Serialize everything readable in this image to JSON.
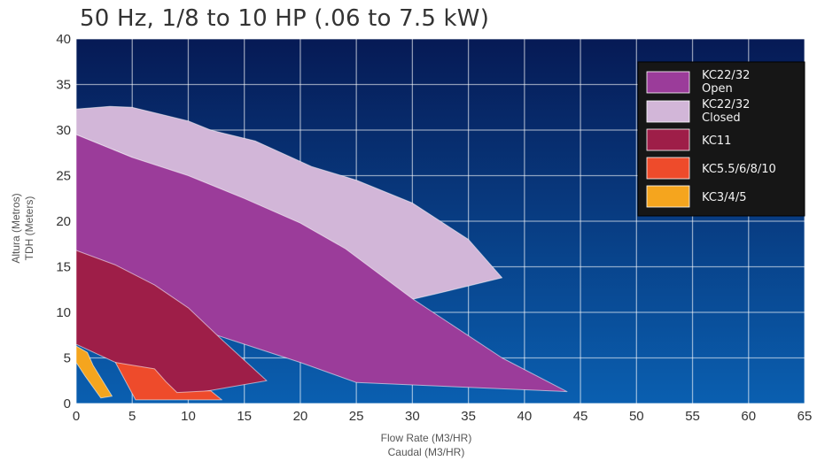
{
  "chart_data": {
    "type": "area",
    "title": "50 Hz, 1/8 to 10 HP (.06 to 7.5 kW)",
    "xlabel": [
      "Flow Rate (M3/HR)",
      "Caudal (M3/HR)"
    ],
    "ylabel": [
      "Altura (Metros)",
      "TDH (Meters)"
    ],
    "xlim": [
      0,
      65
    ],
    "ylim": [
      0,
      40
    ],
    "xticks": [
      0,
      5,
      10,
      15,
      20,
      25,
      30,
      35,
      40,
      45,
      50,
      55,
      60,
      65
    ],
    "yticks": [
      0,
      5,
      10,
      15,
      20,
      25,
      30,
      35,
      40
    ],
    "grid": true,
    "legend_position": "top-right",
    "background_colors": [
      "#061a55",
      "#0a5fb0"
    ],
    "series": [
      {
        "name": [
          "KC22/32",
          "Closed"
        ],
        "color": "#d2b6d8",
        "polygon": [
          [
            0,
            32.3
          ],
          [
            3,
            32.6
          ],
          [
            5,
            32.5
          ],
          [
            10,
            31
          ],
          [
            12,
            30
          ],
          [
            16,
            28.8
          ],
          [
            21,
            26
          ],
          [
            25,
            24.5
          ],
          [
            30,
            22
          ],
          [
            35,
            18
          ],
          [
            38,
            13.8
          ],
          [
            32,
            12
          ],
          [
            25,
            10
          ],
          [
            20,
            12
          ],
          [
            10,
            22
          ],
          [
            5,
            27
          ],
          [
            0,
            29.5
          ]
        ]
      },
      {
        "name": [
          "KC22/32",
          "Open"
        ],
        "color": "#9b3c9a",
        "polygon": [
          [
            0,
            29.5
          ],
          [
            5,
            27
          ],
          [
            10,
            25
          ],
          [
            15,
            22.5
          ],
          [
            20,
            19.8
          ],
          [
            24,
            17
          ],
          [
            30,
            11.5
          ],
          [
            38,
            5
          ],
          [
            43.8,
            1.3
          ],
          [
            25,
            2.3
          ],
          [
            20,
            4.5
          ],
          [
            10,
            8.5
          ],
          [
            5,
            11
          ],
          [
            0,
            16.8
          ]
        ]
      },
      {
        "name": [
          "KC11"
        ],
        "color": "#9e1e48",
        "polygon": [
          [
            0,
            16.8
          ],
          [
            3.5,
            15.2
          ],
          [
            7,
            13
          ],
          [
            10,
            10.5
          ],
          [
            13,
            7
          ],
          [
            17,
            2.5
          ],
          [
            9,
            0.8
          ],
          [
            3.5,
            4.5
          ],
          [
            0,
            6.5
          ]
        ]
      },
      {
        "name": [
          "KC5.5/6/8/10"
        ],
        "color": "#ee4b2b",
        "polygon": [
          [
            3.5,
            4.5
          ],
          [
            7,
            3.8
          ],
          [
            8,
            2.4
          ],
          [
            9,
            1.2
          ],
          [
            12,
            1.4
          ],
          [
            13,
            0.4
          ],
          [
            5.3,
            0.4
          ],
          [
            3.5,
            4.5
          ]
        ]
      },
      {
        "name": [
          "KC3/4/5"
        ],
        "color": "#f5a51e",
        "polygon": [
          [
            0,
            6.3
          ],
          [
            1,
            5.6
          ],
          [
            1.5,
            4.2
          ],
          [
            3.2,
            0.8
          ],
          [
            2.2,
            0.6
          ],
          [
            0.8,
            3
          ],
          [
            0,
            4.5
          ]
        ]
      }
    ],
    "legend": [
      {
        "label": [
          "KC22/32",
          "Open"
        ],
        "color": "#9b3c9a"
      },
      {
        "label": [
          "KC22/32",
          "Closed"
        ],
        "color": "#d2b6d8"
      },
      {
        "label": [
          "KC11"
        ],
        "color": "#9e1e48"
      },
      {
        "label": [
          "KC5.5/6/8/10"
        ],
        "color": "#ee4b2b"
      },
      {
        "label": [
          "KC3/4/5"
        ],
        "color": "#f5a51e"
      }
    ]
  }
}
